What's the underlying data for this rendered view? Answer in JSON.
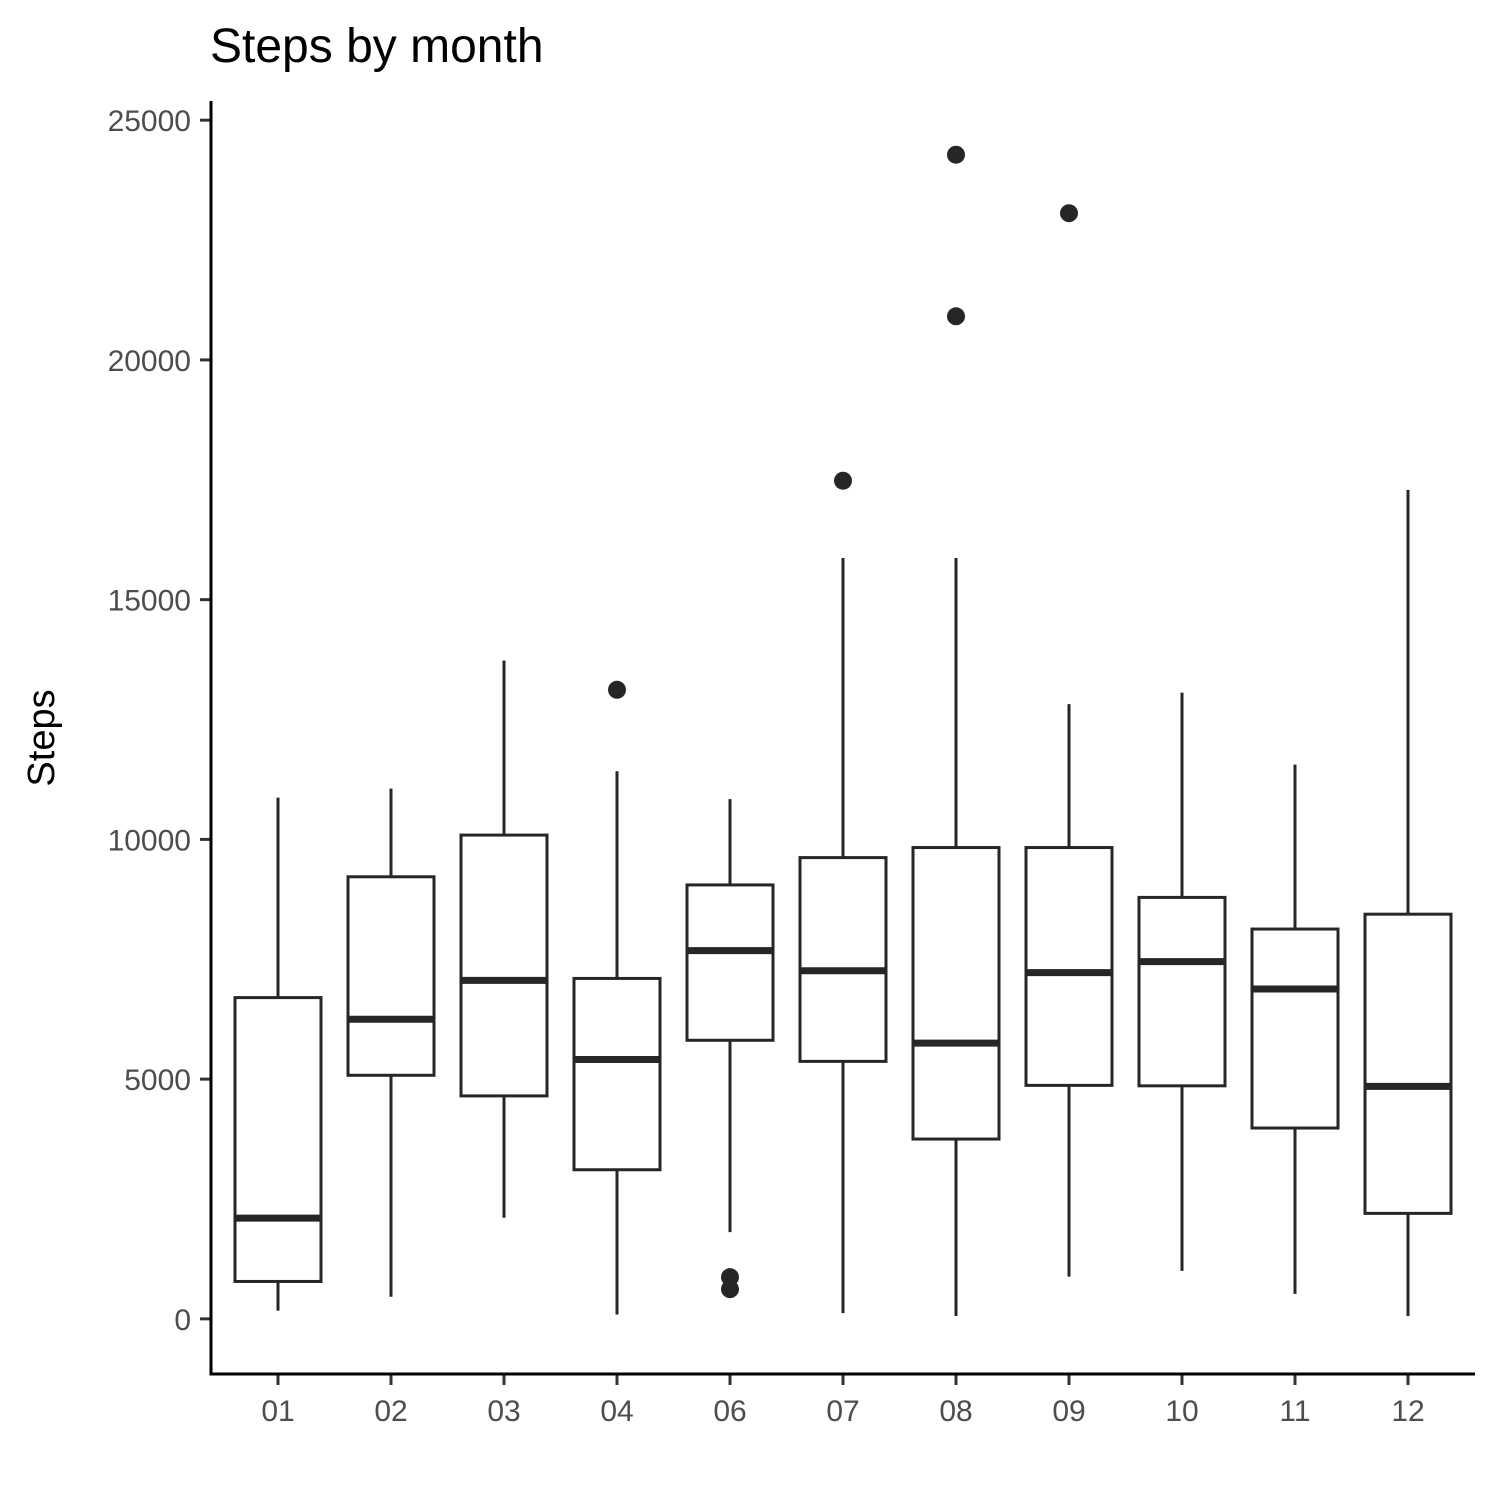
{
  "chart_data": {
    "type": "boxplot",
    "title": "Steps by month",
    "xlabel": "",
    "ylabel": "Steps",
    "ylim": [
      -1150,
      25400
    ],
    "yticks": [
      0,
      5000,
      10000,
      15000,
      20000,
      25000
    ],
    "grid": false,
    "categories": [
      "01",
      "02",
      "03",
      "04",
      "06",
      "07",
      "08",
      "09",
      "10",
      "11",
      "12"
    ],
    "boxes": [
      {
        "category": "01",
        "whisker_low": 170,
        "q1": 780,
        "median": 2100,
        "q3": 6700,
        "whisker_high": 10870,
        "outliers": []
      },
      {
        "category": "02",
        "whisker_low": 460,
        "q1": 5080,
        "median": 6250,
        "q3": 9220,
        "whisker_high": 11060,
        "outliers": []
      },
      {
        "category": "03",
        "whisker_low": 2110,
        "q1": 4650,
        "median": 7060,
        "q3": 10090,
        "whisker_high": 13730,
        "outliers": []
      },
      {
        "category": "04",
        "whisker_low": 90,
        "q1": 3110,
        "median": 5410,
        "q3": 7100,
        "whisker_high": 11420,
        "outliers": [
          13120
        ]
      },
      {
        "category": "06",
        "whisker_low": 1810,
        "q1": 5810,
        "median": 7680,
        "q3": 9050,
        "whisker_high": 10840,
        "outliers": [
          870,
          620
        ]
      },
      {
        "category": "07",
        "whisker_low": 120,
        "q1": 5370,
        "median": 7260,
        "q3": 9620,
        "whisker_high": 15870,
        "outliers": [
          17480
        ]
      },
      {
        "category": "08",
        "whisker_low": 60,
        "q1": 3750,
        "median": 5750,
        "q3": 9830,
        "whisker_high": 15870,
        "outliers": [
          24280,
          20910
        ]
      },
      {
        "category": "09",
        "whisker_low": 880,
        "q1": 4870,
        "median": 7220,
        "q3": 9830,
        "whisker_high": 12820,
        "outliers": [
          23060
        ]
      },
      {
        "category": "10",
        "whisker_low": 1000,
        "q1": 4860,
        "median": 7450,
        "q3": 8790,
        "whisker_high": 13060,
        "outliers": []
      },
      {
        "category": "11",
        "whisker_low": 520,
        "q1": 3980,
        "median": 6880,
        "q3": 8130,
        "whisker_high": 11560,
        "outliers": []
      },
      {
        "category": "12",
        "whisker_low": 60,
        "q1": 2200,
        "median": 4850,
        "q3": 8440,
        "whisker_high": 17290,
        "outliers": []
      }
    ]
  }
}
